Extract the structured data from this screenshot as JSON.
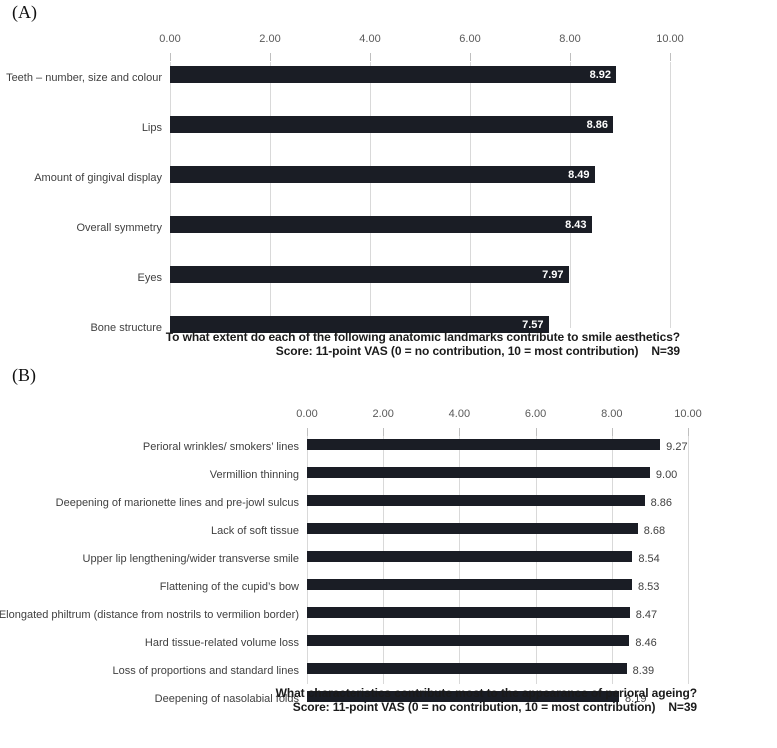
{
  "figure": {
    "background_color": "#ffffff",
    "panel_a_label": "(A)",
    "panel_b_label": "(B)"
  },
  "colors": {
    "bar": "#1a1d25",
    "gridline": "#d9d9d9",
    "tick_mark": "#bfbfbf",
    "axis_text": "#595959",
    "category_text": "#404040",
    "value_inside_text": "#ffffff",
    "value_outside_text": "#404040",
    "caption_text": "#1a1a1a"
  },
  "chart_data": [
    {
      "panel_label": "(A)",
      "type": "bar",
      "orientation": "horizontal",
      "categories": [
        "Teeth – number, size and colour",
        "Lips",
        "Amount of gingival display",
        "Overall symmetry",
        "Eyes",
        "Bone structure"
      ],
      "values": [
        8.92,
        8.86,
        8.49,
        8.43,
        7.97,
        7.57
      ],
      "value_labels": [
        "8.92",
        "8.86",
        "8.49",
        "8.43",
        "7.97",
        "7.57"
      ],
      "xlim": [
        0,
        10
      ],
      "xticks": [
        "0.00",
        "2.00",
        "4.00",
        "6.00",
        "8.00",
        "10.00"
      ],
      "grid": true,
      "legend": "none",
      "value_label_position": "inside",
      "caption": {
        "line1": "To what extent do each of the following anatomic landmarks contribute to smile aesthetics?",
        "line2": "Score: 11-point VAS (0 = no contribution, 10 = most contribution)    N=39"
      }
    },
    {
      "panel_label": "(B)",
      "type": "bar",
      "orientation": "horizontal",
      "categories": [
        "Perioral wrinkles/ smokers’ lines",
        "Vermillion thinning",
        "Deepening of marionette lines and pre-jowl sulcus",
        "Lack of soft tissue",
        "Upper lip lengthening/wider transverse smile",
        "Flattening of the cupid’s bow",
        "Elongated philtrum (distance from nostrils to vermilion border)",
        "Hard tissue-related volume loss",
        "Loss of proportions and standard lines",
        "Deepening of nasolabial folds"
      ],
      "values": [
        9.27,
        9.0,
        8.86,
        8.68,
        8.54,
        8.53,
        8.47,
        8.46,
        8.39,
        8.19
      ],
      "value_labels": [
        "9.27",
        "9.00",
        "8.86",
        "8.68",
        "8.54",
        "8.53",
        "8.47",
        "8.46",
        "8.39",
        "8.19"
      ],
      "xlim": [
        0,
        10
      ],
      "xticks": [
        "0.00",
        "2.00",
        "4.00",
        "6.00",
        "8.00",
        "10.00"
      ],
      "grid": true,
      "legend": "none",
      "value_label_position": "outside",
      "caption": {
        "line1": "What characteristics contribute most to the appearance of perioral ageing?",
        "line2": "Score: 11-point VAS (0 = no contribution, 10 = most contribution)    N=39"
      }
    }
  ]
}
